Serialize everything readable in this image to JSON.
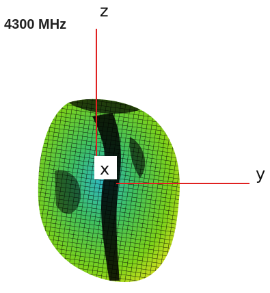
{
  "title": "4300 MHz",
  "axes": {
    "x": "x",
    "y": "y",
    "z": "z"
  }
}
